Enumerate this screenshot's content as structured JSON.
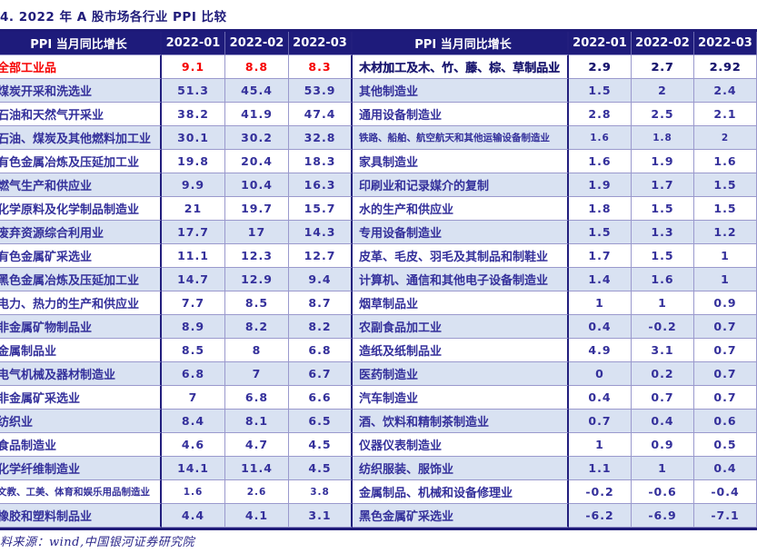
{
  "page": {
    "title": "4. 2022 年 A 股市场各行业 PPI 比较",
    "source_note": "料来源：wind,中国银河证券研究院"
  },
  "colors": {
    "header_bg": "#1e1b7b",
    "header_text": "#ffffff",
    "alt_row_bg": "#d9e2f2",
    "grid_border": "#9a99cd",
    "thick_border": "#1e1a78",
    "body_text": "#34309b",
    "highlight_red": "#f60000"
  },
  "table": {
    "header_label_left": "PPI 当月同比增长",
    "header_label_right": "PPI 当月同比增长",
    "columns": [
      "2022-01",
      "2022-02",
      "2022-03"
    ],
    "rows": [
      {
        "left": {
          "name": "全部工业品",
          "values": [
            "9.1",
            "8.8",
            "8.3"
          ],
          "style": "red"
        },
        "right": {
          "name": "木材加工及木、竹、藤、棕、草制品业",
          "values": [
            "2.9",
            "2.7",
            "2.92"
          ],
          "style": "emph"
        }
      },
      {
        "left": {
          "name": "煤炭开采和洗选业",
          "values": [
            "51.3",
            "45.4",
            "53.9"
          ],
          "style": ""
        },
        "right": {
          "name": "其他制造业",
          "values": [
            "1.5",
            "2",
            "2.4"
          ],
          "style": ""
        }
      },
      {
        "left": {
          "name": "石油和天然气开采业",
          "values": [
            "38.2",
            "41.9",
            "47.4"
          ],
          "style": ""
        },
        "right": {
          "name": "通用设备制造业",
          "values": [
            "2.8",
            "2.5",
            "2.1"
          ],
          "style": ""
        }
      },
      {
        "left": {
          "name": "石油、煤炭及其他燃料加工业",
          "values": [
            "30.1",
            "30.2",
            "32.8"
          ],
          "style": ""
        },
        "right": {
          "name": "铁路、船舶、航空航天和其他运输设备制造业",
          "values": [
            "1.6",
            "1.8",
            "2"
          ],
          "style": "small"
        }
      },
      {
        "left": {
          "name": "有色金属冶炼及压延加工业",
          "values": [
            "19.8",
            "20.4",
            "18.3"
          ],
          "style": ""
        },
        "right": {
          "name": "家具制造业",
          "values": [
            "1.6",
            "1.9",
            "1.6"
          ],
          "style": ""
        }
      },
      {
        "left": {
          "name": "燃气生产和供应业",
          "values": [
            "9.9",
            "10.4",
            "16.3"
          ],
          "style": ""
        },
        "right": {
          "name": "印刷业和记录媒介的复制",
          "values": [
            "1.9",
            "1.7",
            "1.5"
          ],
          "style": ""
        }
      },
      {
        "left": {
          "name": "化学原料及化学制品制造业",
          "values": [
            "21",
            "19.7",
            "15.7"
          ],
          "style": ""
        },
        "right": {
          "name": "水的生产和供应业",
          "values": [
            "1.8",
            "1.5",
            "1.5"
          ],
          "style": ""
        }
      },
      {
        "left": {
          "name": "废弃资源综合利用业",
          "values": [
            "17.7",
            "17",
            "14.3"
          ],
          "style": ""
        },
        "right": {
          "name": "专用设备制造业",
          "values": [
            "1.5",
            "1.3",
            "1.2"
          ],
          "style": ""
        }
      },
      {
        "left": {
          "name": "有色金属矿采选业",
          "values": [
            "11.1",
            "12.3",
            "12.7"
          ],
          "style": ""
        },
        "right": {
          "name": "皮革、毛皮、羽毛及其制品和制鞋业",
          "values": [
            "1.7",
            "1.5",
            "1"
          ],
          "style": ""
        }
      },
      {
        "left": {
          "name": "黑色金属冶炼及压延加工业",
          "values": [
            "14.7",
            "12.9",
            "9.4"
          ],
          "style": ""
        },
        "right": {
          "name": "计算机、通信和其他电子设备制造业",
          "values": [
            "1.4",
            "1.6",
            "1"
          ],
          "style": ""
        }
      },
      {
        "left": {
          "name": "电力、热力的生产和供应业",
          "values": [
            "7.7",
            "8.5",
            "8.7"
          ],
          "style": ""
        },
        "right": {
          "name": "烟草制品业",
          "values": [
            "1",
            "1",
            "0.9"
          ],
          "style": ""
        }
      },
      {
        "left": {
          "name": "非金属矿物制品业",
          "values": [
            "8.9",
            "8.2",
            "8.2"
          ],
          "style": ""
        },
        "right": {
          "name": "农副食品加工业",
          "values": [
            "0.4",
            "-0.2",
            "0.7"
          ],
          "style": ""
        }
      },
      {
        "left": {
          "name": "金属制品业",
          "values": [
            "8.5",
            "8",
            "6.8"
          ],
          "style": ""
        },
        "right": {
          "name": "造纸及纸制品业",
          "values": [
            "4.9",
            "3.1",
            "0.7"
          ],
          "style": ""
        }
      },
      {
        "left": {
          "name": "电气机械及器材制造业",
          "values": [
            "6.8",
            "7",
            "6.7"
          ],
          "style": ""
        },
        "right": {
          "name": "医药制造业",
          "values": [
            "0",
            "0.2",
            "0.7"
          ],
          "style": ""
        }
      },
      {
        "left": {
          "name": "非金属矿采选业",
          "values": [
            "7",
            "6.8",
            "6.6"
          ],
          "style": ""
        },
        "right": {
          "name": "汽车制造业",
          "values": [
            "0.4",
            "0.7",
            "0.7"
          ],
          "style": ""
        }
      },
      {
        "left": {
          "name": "纺织业",
          "values": [
            "8.4",
            "8.1",
            "6.5"
          ],
          "style": ""
        },
        "right": {
          "name": "酒、饮料和精制茶制造业",
          "values": [
            "0.7",
            "0.4",
            "0.6"
          ],
          "style": ""
        }
      },
      {
        "left": {
          "name": "食品制造业",
          "values": [
            "4.6",
            "4.7",
            "4.5"
          ],
          "style": ""
        },
        "right": {
          "name": "仪器仪表制造业",
          "values": [
            "1",
            "0.9",
            "0.5"
          ],
          "style": ""
        }
      },
      {
        "left": {
          "name": "化学纤维制造业",
          "values": [
            "14.1",
            "11.4",
            "4.5"
          ],
          "style": ""
        },
        "right": {
          "name": "纺织服装、服饰业",
          "values": [
            "1.1",
            "1",
            "0.4"
          ],
          "style": ""
        }
      },
      {
        "left": {
          "name": "文教、工美、体育和娱乐用品制造业",
          "values": [
            "1.6",
            "2.6",
            "3.8"
          ],
          "style": "small"
        },
        "right": {
          "name": "金属制品、机械和设备修理业",
          "values": [
            "-0.2",
            "-0.6",
            "-0.4"
          ],
          "style": ""
        }
      },
      {
        "left": {
          "name": "橡胶和塑料制品业",
          "values": [
            "4.4",
            "4.1",
            "3.1"
          ],
          "style": ""
        },
        "right": {
          "name": "黑色金属矿采选业",
          "values": [
            "-6.2",
            "-6.9",
            "-7.1"
          ],
          "style": ""
        }
      }
    ]
  }
}
